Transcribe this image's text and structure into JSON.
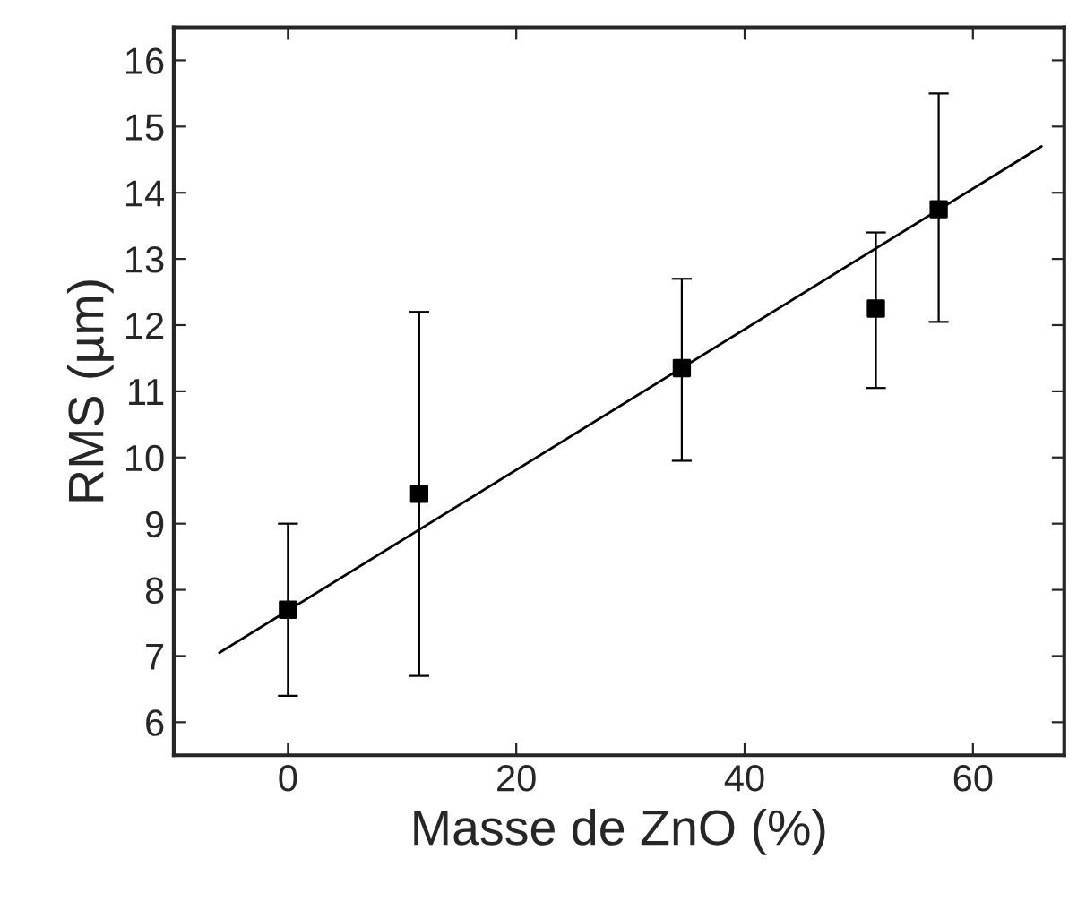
{
  "chart_data": {
    "type": "scatter",
    "xlabel": "Masse de ZnO (%)",
    "ylabel": "RMS (µm)",
    "xlim": [
      -10,
      68
    ],
    "ylim": [
      5.5,
      16.5
    ],
    "xticks": [
      0,
      20,
      40,
      60
    ],
    "yticks": [
      6,
      7,
      8,
      9,
      10,
      11,
      12,
      13,
      14,
      15,
      16
    ],
    "grid": false,
    "series": [
      {
        "color": "#000000",
        "marker": "square",
        "x": [
          0,
          11.5,
          34.5,
          51.5,
          57
        ],
        "values": [
          7.7,
          9.45,
          11.35,
          12.25,
          13.75
        ],
        "errors": [
          [
            6.4,
            9.0
          ],
          [
            6.7,
            12.2
          ],
          [
            9.95,
            12.7
          ],
          [
            11.05,
            13.4
          ],
          [
            12.05,
            15.5
          ]
        ]
      },
      {
        "type": "line",
        "color": "#000000",
        "marker": "none",
        "line_style": "solid",
        "x": [
          -6,
          66
        ],
        "values": [
          7.05,
          14.7
        ]
      }
    ]
  }
}
